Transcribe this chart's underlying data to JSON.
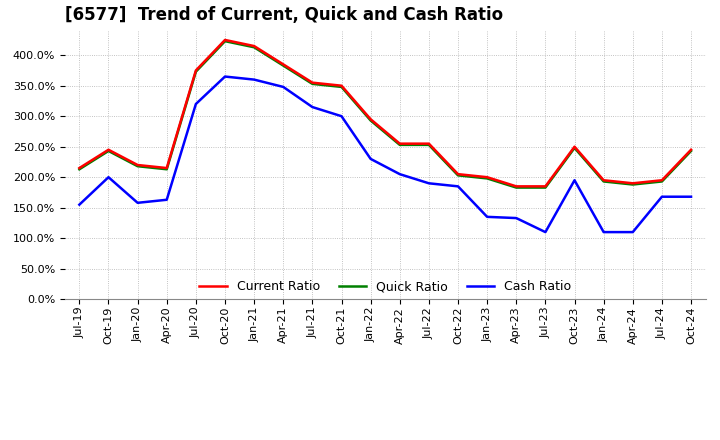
{
  "title": "[6577]  Trend of Current, Quick and Cash Ratio",
  "labels": [
    "Jul-19",
    "Oct-19",
    "Jan-20",
    "Apr-20",
    "Jul-20",
    "Oct-20",
    "Jan-21",
    "Apr-21",
    "Jul-21",
    "Oct-21",
    "Jan-22",
    "Apr-22",
    "Jul-22",
    "Oct-22",
    "Jan-23",
    "Apr-23",
    "Jul-23",
    "Oct-23",
    "Jan-24",
    "Apr-24",
    "Jul-24",
    "Oct-24"
  ],
  "current_ratio": [
    215,
    245,
    220,
    215,
    375,
    425,
    415,
    385,
    355,
    350,
    295,
    255,
    255,
    205,
    200,
    185,
    185,
    250,
    195,
    190,
    195,
    245
  ],
  "quick_ratio": [
    213,
    243,
    218,
    213,
    373,
    423,
    413,
    383,
    353,
    348,
    293,
    253,
    253,
    203,
    198,
    183,
    183,
    248,
    193,
    188,
    193,
    243
  ],
  "cash_ratio": [
    155,
    200,
    158,
    163,
    320,
    365,
    360,
    348,
    315,
    300,
    230,
    205,
    190,
    185,
    135,
    133,
    110,
    195,
    110,
    110,
    168,
    168
  ],
  "current_color": "#ff0000",
  "quick_color": "#008000",
  "cash_color": "#0000ff",
  "ylim": [
    0,
    440
  ],
  "yticks": [
    0,
    50,
    100,
    150,
    200,
    250,
    300,
    350,
    400
  ],
  "background_color": "#ffffff",
  "grid_color": "#b0b0b0",
  "title_fontsize": 12,
  "legend_fontsize": 9,
  "tick_fontsize": 8,
  "linewidth": 1.8
}
